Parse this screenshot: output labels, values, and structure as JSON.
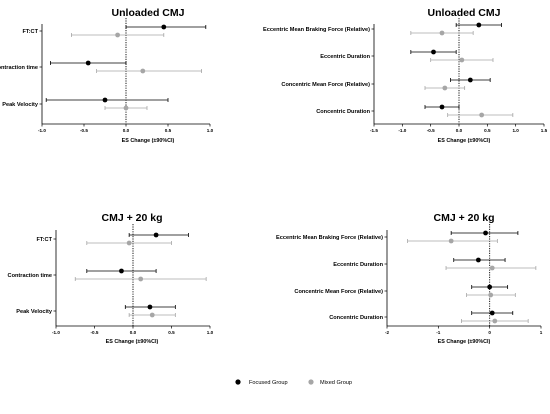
{
  "legend": {
    "focused_label": "Focused Group",
    "mixed_label": "Mixed Group"
  },
  "colors": {
    "focused": "#000000",
    "mixed": "#a6a6a6",
    "axis": "#000000"
  },
  "chart_data": [
    {
      "type": "forest",
      "title": "Unloaded CMJ",
      "xlabel": "ES Change (±90%CI)",
      "xlim": [
        -1.0,
        1.0
      ],
      "xticks": [
        "-1.0",
        "-0.5",
        "0.0",
        "0.5",
        "1.0"
      ],
      "categories": [
        "FT:CT",
        "Contraction time",
        "Peak Velocity"
      ],
      "series": [
        {
          "name": "Focused Group",
          "values": [
            0.45,
            -0.45,
            -0.25
          ],
          "lower": [
            0.0,
            -0.9,
            -0.95
          ],
          "upper": [
            0.95,
            0.0,
            0.5
          ]
        },
        {
          "name": "Mixed Group",
          "values": [
            -0.1,
            0.2,
            0.0
          ],
          "lower": [
            -0.65,
            -0.35,
            -0.25
          ],
          "upper": [
            0.45,
            0.9,
            0.25
          ]
        }
      ]
    },
    {
      "type": "forest",
      "title": "Unloaded CMJ",
      "xlabel": "ES Change (±90%CI)",
      "xlim": [
        -1.5,
        1.5
      ],
      "xticks": [
        "-1.5",
        "-1.0",
        "-0.5",
        "0.0",
        "0.5",
        "1.0",
        "1.5"
      ],
      "categories": [
        "Eccentric Mean Braking Force (Relative)",
        "Eccentric Duration",
        "Concentric Mean Force (Relative)",
        "Concentric Duration"
      ],
      "series": [
        {
          "name": "Focused Group",
          "values": [
            0.35,
            -0.45,
            0.2,
            -0.3
          ],
          "lower": [
            -0.05,
            -0.85,
            -0.15,
            -0.6
          ],
          "upper": [
            0.75,
            -0.05,
            0.55,
            0.0
          ]
        },
        {
          "name": "Mixed Group",
          "values": [
            -0.3,
            0.05,
            -0.25,
            0.4
          ],
          "lower": [
            -0.85,
            -0.5,
            -0.6,
            -0.2
          ],
          "upper": [
            0.25,
            0.6,
            0.1,
            0.95
          ]
        }
      ]
    },
    {
      "type": "forest",
      "title": "CMJ + 20 kg",
      "xlabel": "ES Change (±90%CI)",
      "xlim": [
        -1.0,
        1.0
      ],
      "xticks": [
        "-1.0",
        "-0.5",
        "0.0",
        "0.5",
        "1.0"
      ],
      "categories": [
        "FT:CT",
        "Contraction time",
        "Peak Velocity"
      ],
      "series": [
        {
          "name": "Focused Group",
          "values": [
            0.3,
            -0.15,
            0.22
          ],
          "lower": [
            -0.05,
            -0.6,
            -0.1
          ],
          "upper": [
            0.72,
            0.3,
            0.55
          ]
        },
        {
          "name": "Mixed Group",
          "values": [
            -0.05,
            0.1,
            0.25
          ],
          "lower": [
            -0.6,
            -0.75,
            -0.05
          ],
          "upper": [
            0.5,
            0.95,
            0.55
          ]
        }
      ]
    },
    {
      "type": "forest",
      "title": "CMJ + 20 kg",
      "xlabel": "ES Change (±90%CI)",
      "xlim": [
        -2,
        1
      ],
      "xticks": [
        "-2",
        "-1",
        "0",
        "1"
      ],
      "categories": [
        "Eccentric Mean Braking Force (Relative)",
        "Eccentric Duration",
        "Concentric Mean Force (Relative)",
        "Concentric Duration"
      ],
      "series": [
        {
          "name": "Focused Group",
          "values": [
            -0.08,
            -0.22,
            0.0,
            0.05
          ],
          "lower": [
            -0.75,
            -0.7,
            -0.35,
            -0.35
          ],
          "upper": [
            0.55,
            0.3,
            0.35,
            0.45
          ]
        },
        {
          "name": "Mixed Group",
          "values": [
            -0.75,
            0.05,
            0.02,
            0.1
          ],
          "lower": [
            -1.6,
            -0.85,
            -0.45,
            -0.55
          ],
          "upper": [
            0.15,
            0.9,
            0.5,
            0.75
          ]
        }
      ]
    }
  ]
}
